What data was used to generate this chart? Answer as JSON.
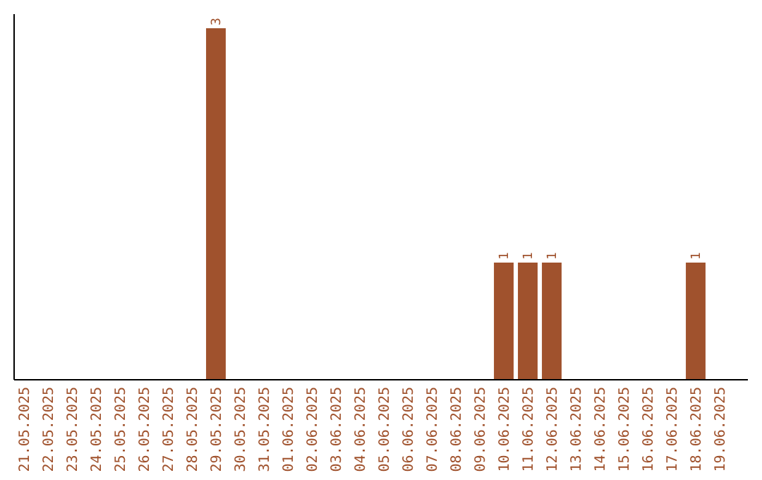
{
  "chart_data": {
    "type": "bar",
    "categories": [
      "21.05.2025",
      "22.05.2025",
      "23.05.2025",
      "24.05.2025",
      "25.05.2025",
      "26.05.2025",
      "27.05.2025",
      "28.05.2025",
      "29.05.2025",
      "30.05.2025",
      "31.05.2025",
      "01.06.2025",
      "02.06.2025",
      "03.06.2025",
      "04.06.2025",
      "05.06.2025",
      "06.06.2025",
      "07.06.2025",
      "08.06.2025",
      "09.06.2025",
      "10.06.2025",
      "11.06.2025",
      "12.06.2025",
      "13.06.2025",
      "14.06.2025",
      "15.06.2025",
      "16.06.2025",
      "17.06.2025",
      "18.06.2025",
      "19.06.2025"
    ],
    "values": [
      0,
      0,
      0,
      0,
      0,
      0,
      0,
      0,
      3,
      0,
      0,
      0,
      0,
      0,
      0,
      0,
      0,
      0,
      0,
      0,
      1,
      1,
      1,
      0,
      0,
      0,
      0,
      0,
      1,
      0
    ],
    "value_labels": [
      null,
      null,
      null,
      null,
      null,
      null,
      null,
      null,
      "3",
      null,
      null,
      null,
      null,
      null,
      null,
      null,
      null,
      null,
      null,
      null,
      "1",
      "1",
      "1",
      null,
      null,
      null,
      null,
      null,
      "1",
      null
    ],
    "color": "#a0522d"
  }
}
